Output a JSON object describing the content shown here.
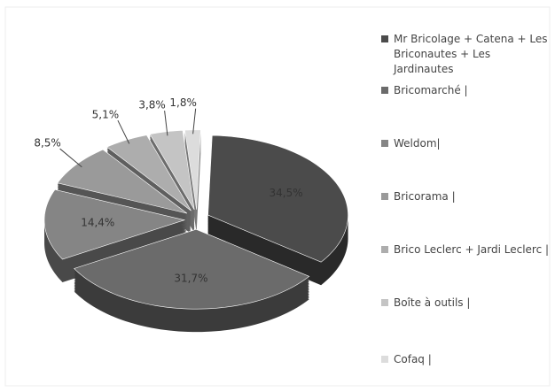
{
  "chart_data": {
    "type": "pie",
    "categories": [
      "Mr Bricolage + Catena + Les Briconautes + Les Jardinautes",
      "Bricomarché |",
      "Weldom|",
      "Bricorama |",
      "Brico Leclerc + Jardi Leclerc |",
      "Boîte à outils |",
      "Cofaq |"
    ],
    "values": [
      34.5,
      31.7,
      14.4,
      8.5,
      5.1,
      3.8,
      1.8
    ],
    "value_labels": [
      "34,5%",
      "31,7%",
      "14,4%",
      "8,5%",
      "5,1%",
      "3,8%",
      "1,8%"
    ],
    "colors": [
      "#4b4b4b",
      "#6b6b6b",
      "#858585",
      "#9a9a9a",
      "#adadad",
      "#c4c4c4",
      "#dcdcdc"
    ],
    "legend": "right"
  }
}
